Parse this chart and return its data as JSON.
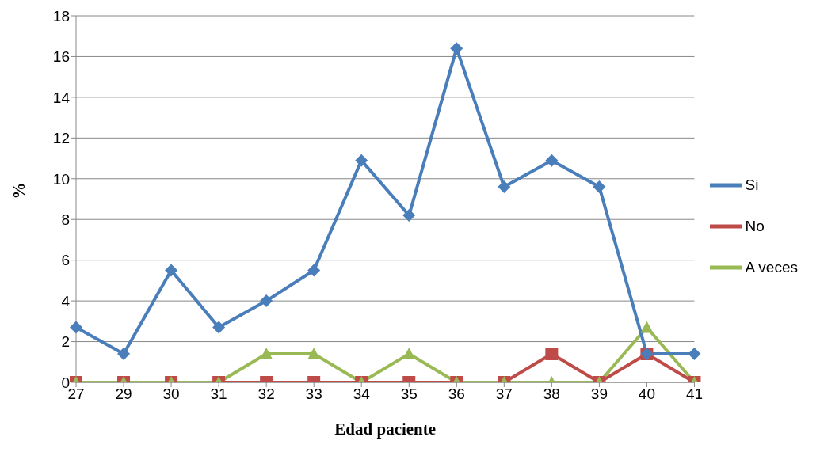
{
  "chart_data": {
    "type": "line",
    "xlabel": "Edad paciente",
    "ylabel": "%",
    "categories": [
      "27",
      "29",
      "30",
      "31",
      "32",
      "33",
      "34",
      "35",
      "36",
      "37",
      "38",
      "39",
      "40",
      "41"
    ],
    "series": [
      {
        "name": "Si",
        "color": "#4a7ebb",
        "marker": "diamond",
        "values": [
          2.7,
          1.4,
          5.5,
          2.7,
          4.0,
          5.5,
          10.9,
          8.2,
          16.4,
          9.6,
          10.9,
          9.6,
          1.4,
          1.4
        ]
      },
      {
        "name": "No",
        "color": "#be4b48",
        "marker": "square",
        "values": [
          0,
          0,
          0,
          0,
          0,
          0,
          0,
          0,
          0,
          0,
          1.4,
          0,
          1.4,
          0
        ]
      },
      {
        "name": "A veces",
        "color": "#98b954",
        "marker": "triangle",
        "values": [
          0,
          0,
          0,
          0,
          1.4,
          1.4,
          0,
          1.4,
          0,
          0,
          0,
          0,
          2.7,
          0
        ]
      }
    ],
    "ylim": [
      0,
      18
    ],
    "yticks": [
      0,
      2,
      4,
      6,
      8,
      10,
      12,
      14,
      16,
      18
    ],
    "grid": "y",
    "legend": "right"
  }
}
